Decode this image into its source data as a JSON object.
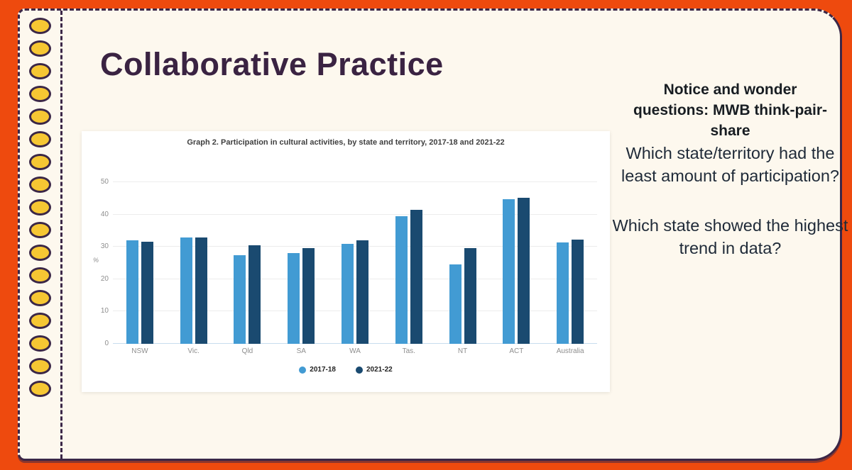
{
  "slide": {
    "title": "Collaborative Practice",
    "decor_dots": {
      "count": 17,
      "fill": "#f6c733",
      "outline": "#3b2747"
    }
  },
  "side_panel": {
    "heading": "Notice and wonder questions: MWB think-pair-share",
    "questions": [
      "Which state/territory had the least amount of participation?",
      "Which state showed the highest trend in data?"
    ]
  },
  "chart_data": {
    "type": "bar",
    "title": "Graph 2. Participation in cultural activities, by state and territory, 2017-18 and 2021-22",
    "xlabel": "",
    "ylabel": "%",
    "categories": [
      "NSW",
      "Vic.",
      "Qld",
      "SA",
      "WA",
      "Tas.",
      "NT",
      "ACT",
      "Australia"
    ],
    "series": [
      {
        "name": "2017-18",
        "color": "#429bd3",
        "values": [
          32,
          33,
          27.5,
          28,
          31,
          39.5,
          24.5,
          44.8,
          31.3
        ]
      },
      {
        "name": "2021-22",
        "color": "#1a4a70",
        "values": [
          31.5,
          33,
          30.5,
          29.5,
          32,
          41.5,
          29.5,
          45.2,
          32.2
        ]
      }
    ],
    "yticks": [
      0,
      10,
      20,
      30,
      40,
      50
    ],
    "ylim": [
      0,
      50
    ],
    "grid": true,
    "legend_position": "bottom"
  },
  "colors": {
    "frame_orange": "#ee4a0e",
    "slide_cream": "#fdf8ee",
    "border_purple": "#3b2747",
    "title_purple": "#3a2342",
    "series_light_blue": "#429bd3",
    "series_dark_blue": "#1a4a70"
  }
}
